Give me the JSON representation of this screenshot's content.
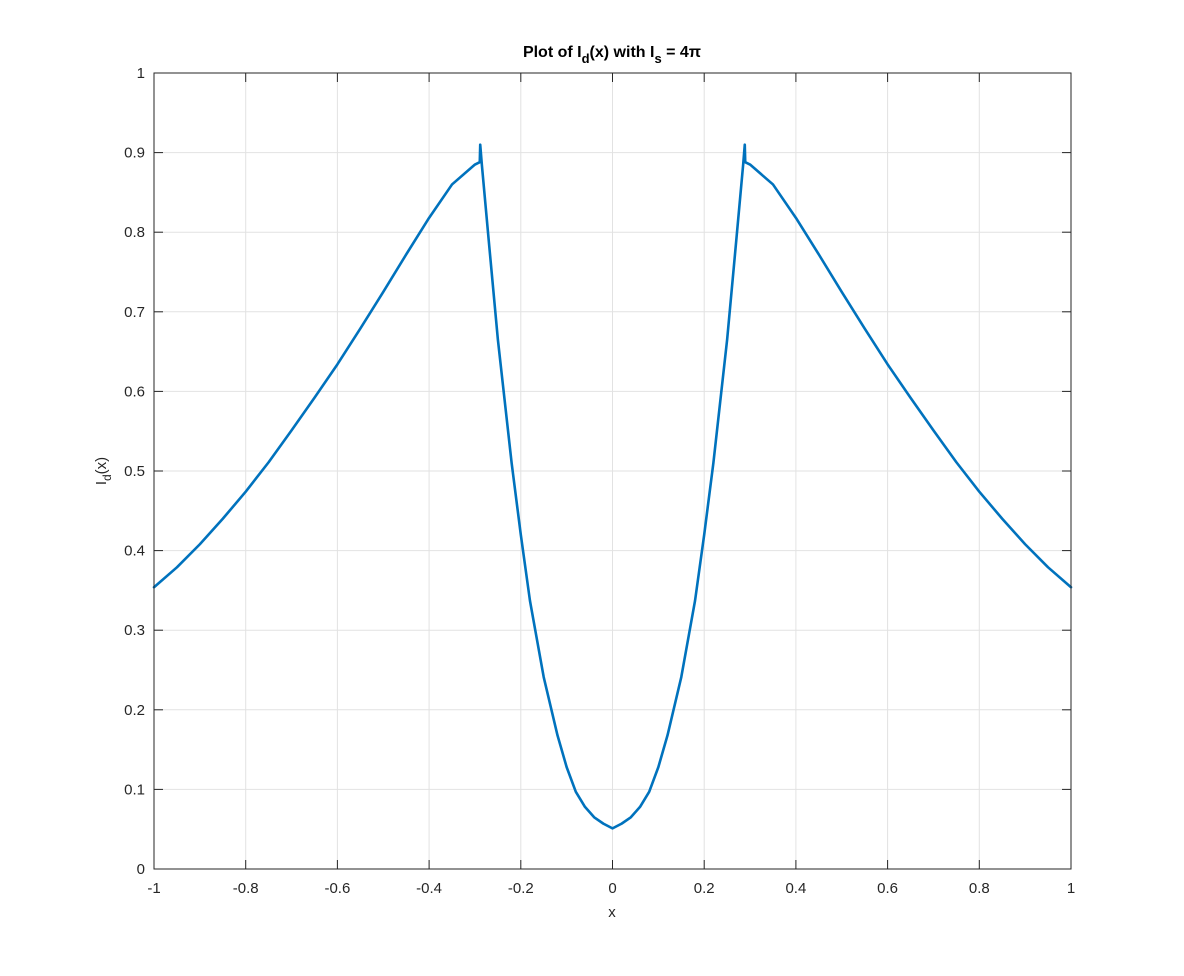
{
  "chart_data": {
    "type": "line",
    "title": {
      "prefix": "Plot of I",
      "sub1": "d",
      "mid": "(x) with I",
      "sub2": "s",
      "suffix": " = 4π"
    },
    "xlabel": "x",
    "ylabel": {
      "base": "I",
      "sub": "d",
      "tail": "(x)"
    },
    "xlim": [
      -1,
      1
    ],
    "ylim": [
      0,
      1
    ],
    "xticks": [
      "-1",
      "-0.8",
      "-0.6",
      "-0.4",
      "-0.2",
      "0",
      "0.2",
      "0.4",
      "0.6",
      "0.8",
      "1"
    ],
    "yticks": [
      "0",
      "0.1",
      "0.2",
      "0.3",
      "0.4",
      "0.5",
      "0.6",
      "0.7",
      "0.8",
      "0.9",
      "1"
    ],
    "grid": true,
    "line_color": "#0072BD",
    "series": [
      {
        "x": [
          -1.0,
          -0.95,
          -0.9,
          -0.85,
          -0.8,
          -0.75,
          -0.7,
          -0.65,
          -0.6,
          -0.55,
          -0.5,
          -0.45,
          -0.4,
          -0.35,
          -0.3,
          -0.2895,
          -0.2885,
          -0.285,
          -0.27,
          -0.25,
          -0.22,
          -0.2,
          -0.18,
          -0.15,
          -0.12,
          -0.1,
          -0.08,
          -0.06,
          -0.04,
          -0.02,
          0.0,
          0.02,
          0.04,
          0.06,
          0.08,
          0.1,
          0.12,
          0.15,
          0.18,
          0.2,
          0.22,
          0.25,
          0.27,
          0.285,
          0.2885,
          0.2895,
          0.3,
          0.35,
          0.4,
          0.45,
          0.5,
          0.55,
          0.6,
          0.65,
          0.7,
          0.75,
          0.8,
          0.85,
          0.9,
          0.95,
          1.0
        ],
        "y": [
          0.354,
          0.379,
          0.408,
          0.44,
          0.474,
          0.511,
          0.551,
          0.592,
          0.634,
          0.679,
          0.725,
          0.772,
          0.818,
          0.86,
          0.885,
          0.888,
          0.91,
          0.885,
          0.79,
          0.665,
          0.51,
          0.42,
          0.337,
          0.241,
          0.168,
          0.128,
          0.097,
          0.078,
          0.065,
          0.057,
          0.051,
          0.057,
          0.065,
          0.078,
          0.097,
          0.128,
          0.168,
          0.241,
          0.337,
          0.42,
          0.51,
          0.665,
          0.79,
          0.885,
          0.91,
          0.888,
          0.885,
          0.86,
          0.818,
          0.772,
          0.725,
          0.679,
          0.634,
          0.592,
          0.551,
          0.511,
          0.474,
          0.44,
          0.408,
          0.379,
          0.354
        ]
      }
    ]
  }
}
